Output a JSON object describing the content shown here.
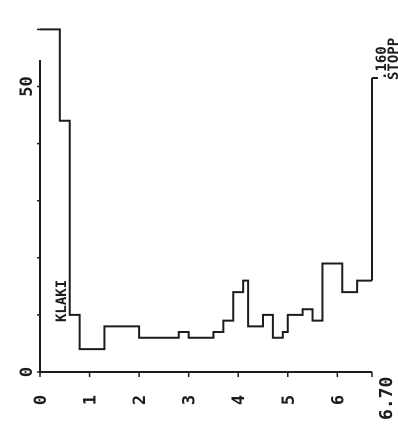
{
  "chart_data": {
    "type": "bar",
    "style": "step-histogram",
    "title": "",
    "xlabel": "",
    "ylabel": "",
    "x_ticks": [
      "0",
      "1",
      "2",
      "3",
      "4",
      "5",
      "6"
    ],
    "x_end_label": "6.70",
    "xlim": [
      0,
      6.7
    ],
    "y_ticks": [
      "0",
      "50"
    ],
    "ylim": [
      0,
      62
    ],
    "bin_edges": [
      0,
      0.4,
      0.6,
      0.8,
      1.3,
      1.4,
      1.6,
      2.0,
      2.5,
      2.8,
      3.0,
      3.2,
      3.5,
      3.7,
      3.9,
      4.1,
      4.2,
      4.5,
      4.7,
      4.9,
      5.0,
      5.3,
      5.5,
      5.7,
      6.1,
      6.4,
      6.7
    ],
    "values": [
      60,
      44,
      10,
      4,
      8,
      8,
      8,
      6,
      6,
      7,
      6,
      6,
      7,
      9,
      14,
      16,
      8,
      10,
      6,
      7,
      10,
      11,
      9,
      19,
      14,
      16
    ],
    "annotations": {
      "left_label": "KLAKI",
      "end_value": ".160",
      "end_label": "STOPP"
    },
    "grid": false,
    "orientation": "rotated-90"
  }
}
